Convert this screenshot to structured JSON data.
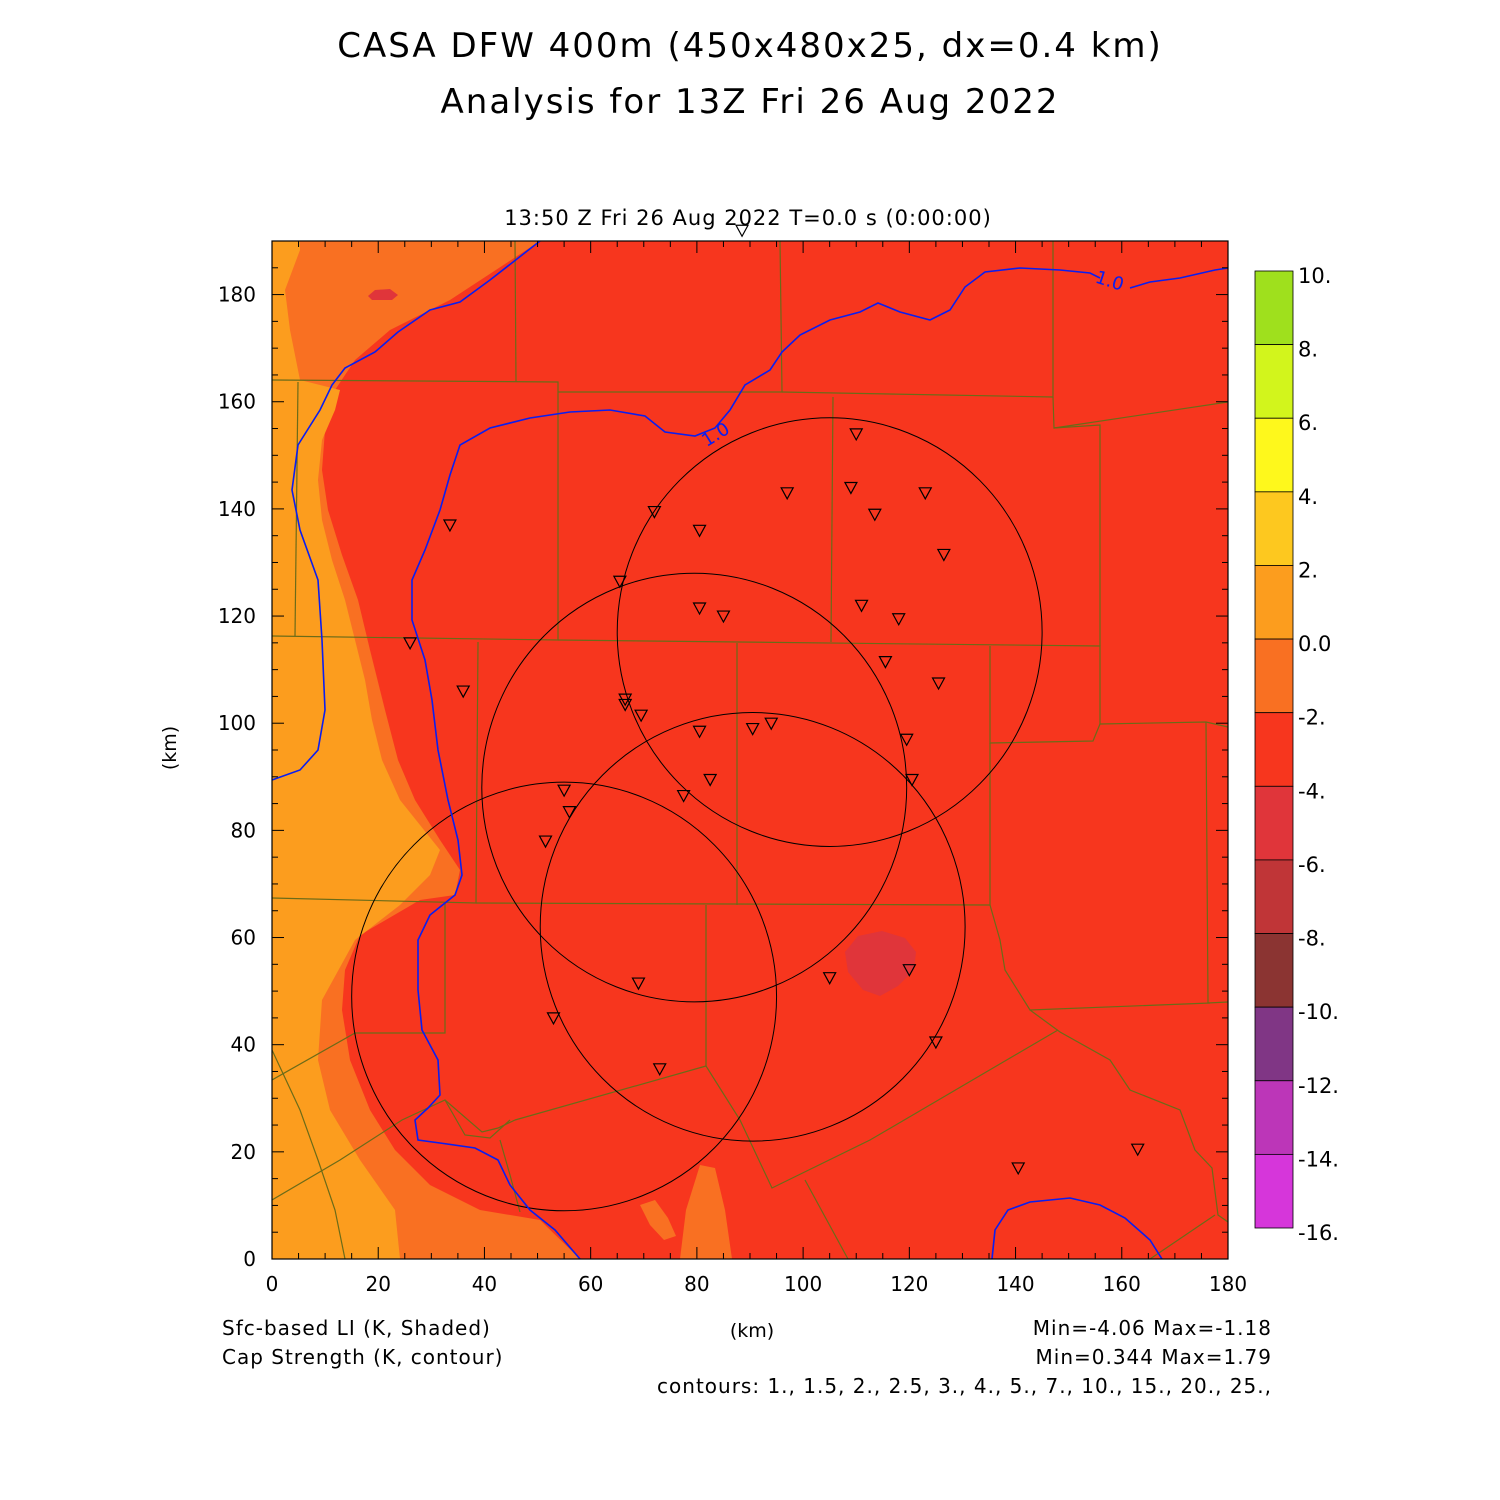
{
  "title_line1": "CASA DFW 400m (450x480x25, dx=0.4 km)",
  "title_line2": "Analysis for 13Z Fri 26 Aug 2022",
  "valid_time": "13:50 Z Fri 26 Aug 2022    T=0.0 s (0:00:00)",
  "x_axis_label": "(km)",
  "y_axis_label": "(km)",
  "x_ticks": [
    "0",
    "20",
    "40",
    "60",
    "80",
    "100",
    "120",
    "140",
    "160",
    "180"
  ],
  "y_ticks": [
    "0",
    "20",
    "40",
    "60",
    "80",
    "100",
    "120",
    "140",
    "160",
    "180"
  ],
  "footer": {
    "shaded_field": "Sfc-based LI (K, Shaded)",
    "contour_field": "Cap Strength (K, contour)",
    "shaded_range": "Min=-4.06  Max=-1.18",
    "contour_range": "Min=0.344  Max=1.79",
    "contours": "contours: 1., 1.5, 2., 2.5, 3., 4., 5., 7., 10., 15., 20., 25.,"
  },
  "contour_labels": [
    "1.0",
    "1.0"
  ],
  "colorbar": {
    "labels": [
      "10.",
      "8.",
      "6.",
      "4.",
      "2.",
      "0.0",
      "-2.",
      "-4.",
      "-6.",
      "-8.",
      "-10.",
      "-12.",
      "-14.",
      "-16."
    ],
    "colors": [
      "#9fe01d",
      "#d2f51c",
      "#fef81c",
      "#fdc81f",
      "#fc9d1e",
      "#f97022",
      "#f7361e",
      "#e0353a",
      "#c03537",
      "#8b3432",
      "#803685",
      "#bc36b8",
      "#d636da"
    ]
  },
  "colors": {
    "field_main": "#f7361e",
    "field_west": "#f97022",
    "field_far_west": "#fc9d1e",
    "field_blob": "#e0353a",
    "contour": "#0a1ef0",
    "county_lines": "#6b6b18",
    "radar_rings": "#000000"
  },
  "radar_rings_km": [
    {
      "center": [
        105,
        117
      ],
      "radius": 40
    },
    {
      "center": [
        79.5,
        88
      ],
      "radius": 40
    },
    {
      "center": [
        90.5,
        62
      ],
      "radius": 40
    },
    {
      "center": [
        55,
        49
      ],
      "radius": 40
    }
  ],
  "stations_km": [
    [
      88.5,
      192
    ],
    [
      110,
      154
    ],
    [
      97,
      143
    ],
    [
      109,
      144
    ],
    [
      123,
      143
    ],
    [
      113.5,
      139
    ],
    [
      72,
      139.5
    ],
    [
      80.5,
      136
    ],
    [
      33.5,
      137
    ],
    [
      126.5,
      131.5
    ],
    [
      65.5,
      126.5
    ],
    [
      111,
      122
    ],
    [
      80.5,
      121.5
    ],
    [
      85,
      120
    ],
    [
      118,
      119.5
    ],
    [
      26,
      115
    ],
    [
      115.5,
      111.5
    ],
    [
      36,
      106
    ],
    [
      125.5,
      107.5
    ],
    [
      66.5,
      104.5
    ],
    [
      66.5,
      103.5
    ],
    [
      69.5,
      101.5
    ],
    [
      94,
      100
    ],
    [
      90.5,
      99
    ],
    [
      80.5,
      98.5
    ],
    [
      119.5,
      97
    ],
    [
      82.5,
      89.5
    ],
    [
      120.5,
      89.5
    ],
    [
      55,
      87.5
    ],
    [
      77.5,
      86.5
    ],
    [
      56,
      83.5
    ],
    [
      51.5,
      78
    ],
    [
      69,
      51.5
    ],
    [
      105,
      52.5
    ],
    [
      120,
      54
    ],
    [
      53,
      45
    ],
    [
      125,
      40.5
    ],
    [
      73,
      35.5
    ],
    [
      163,
      20.5
    ],
    [
      140.5,
      17
    ]
  ]
}
